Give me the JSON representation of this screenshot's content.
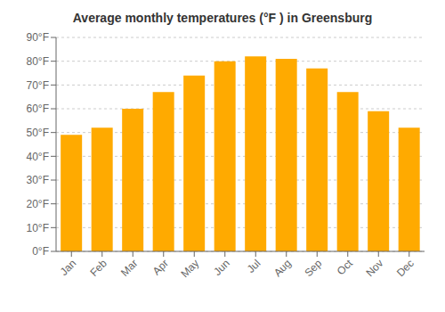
{
  "chart_data": {
    "type": "bar",
    "title": "Average monthly temperatures (°F ) in Greensburg",
    "categories": [
      "Jan",
      "Feb",
      "Mar",
      "Apr",
      "May",
      "Jun",
      "Jul",
      "Aug",
      "Sep",
      "Oct",
      "Nov",
      "Dec"
    ],
    "values": [
      49,
      52,
      60,
      67,
      74,
      80,
      82,
      81,
      77,
      67,
      59,
      52
    ],
    "color": "#FFAA00",
    "ylim": [
      0,
      90
    ],
    "yticks": [
      {
        "value": 0,
        "label": "0°F"
      },
      {
        "value": 10,
        "label": "10°F"
      },
      {
        "value": 20,
        "label": "20°F"
      },
      {
        "value": 30,
        "label": "30°F"
      },
      {
        "value": 40,
        "label": "40°F"
      },
      {
        "value": 50,
        "label": "50°F"
      },
      {
        "value": 60,
        "label": "60°F"
      },
      {
        "value": 70,
        "label": "70°F"
      },
      {
        "value": 80,
        "label": "80°F"
      },
      {
        "value": 90,
        "label": "90°F"
      }
    ],
    "grid": true
  }
}
